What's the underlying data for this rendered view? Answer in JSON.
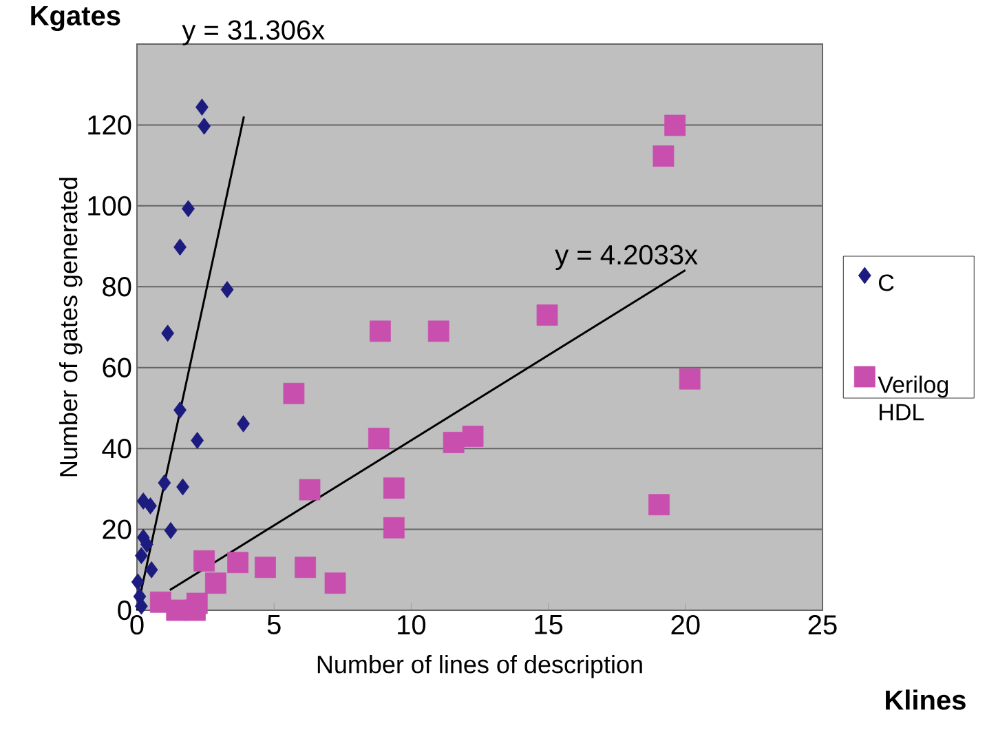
{
  "chart_data": {
    "type": "scatter",
    "xlabel": "Number of lines of description",
    "ylabel": "Number of gates generated",
    "xlim": [
      0,
      25
    ],
    "xticks": [
      0,
      5,
      10,
      15,
      20,
      25
    ],
    "ylim": [
      0,
      140
    ],
    "yticks": [
      0,
      20,
      40,
      60,
      80,
      100,
      120,
      {
        "value": 140,
        "label": null
      }
    ],
    "grid": "y",
    "legend": "right",
    "series": [
      {
        "name": "C",
        "color": "#1c1c80",
        "marker": "diamond",
        "x": [
          2.37,
          2.45,
          1.87,
          1.57,
          3.29,
          1.12,
          1.57,
          3.88,
          2.2,
          1.0,
          1.67,
          0.23,
          0.49,
          1.23,
          0.23,
          0.36,
          0.16,
          0.53,
          0.03,
          0.1,
          0.16
        ],
        "values": [
          124.4,
          119.7,
          99.3,
          89.8,
          79.3,
          68.5,
          49.5,
          46.1,
          42,
          31.5,
          30.5,
          27,
          25.8,
          19.7,
          18,
          16.3,
          13.5,
          10,
          7,
          3.4,
          1
        ]
      },
      {
        "name": "Verilog HDL",
        "color": "#c94fae",
        "marker": "square",
        "x": [
          5.72,
          6.3,
          2.45,
          3.68,
          4.68,
          6.14,
          7.23,
          2.87,
          0.86,
          1.45,
          2.12,
          2.19,
          8.87,
          11.0,
          14.96,
          8.82,
          11.55,
          12.25,
          9.37,
          9.37,
          19.62,
          19.2,
          20.16,
          19.04
        ],
        "values": [
          53.6,
          29.8,
          12.2,
          11.8,
          10.6,
          10.6,
          6.7,
          6.7,
          2,
          0,
          0,
          1.7,
          69,
          69,
          73,
          42.5,
          41.5,
          43,
          30.2,
          20.4,
          119.9,
          112.3,
          57.2,
          26.1
        ]
      },
      {
        "type": "line",
        "color": "#000000",
        "marker": "none",
        "line_style": "solid",
        "x": [
          0,
          3.9
        ],
        "values": [
          0,
          122.1
        ]
      },
      {
        "type": "line",
        "color": "#000000",
        "marker": "none",
        "line_style": "solid",
        "x": [
          1.2,
          20
        ],
        "values": [
          5.0,
          84.1
        ]
      }
    ],
    "annotations": [
      "y = 31.306x",
      "y = 4.2033x",
      "**Kgates**",
      "**Klines**"
    ]
  }
}
